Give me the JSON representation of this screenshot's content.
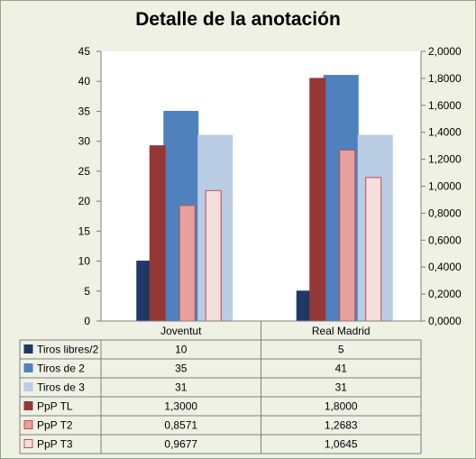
{
  "chart_data": {
    "type": "bar",
    "title": "Detalle de la anotación",
    "categories": [
      "Joventut",
      "Real Madrid"
    ],
    "ylim": [
      0,
      45
    ],
    "y_ticks": [
      "0",
      "5",
      "10",
      "15",
      "20",
      "25",
      "30",
      "35",
      "40",
      "45"
    ],
    "y2lim": [
      0,
      2
    ],
    "y2_ticks": [
      "0,0000",
      "0,2000",
      "0,4000",
      "0,6000",
      "0,8000",
      "1,0000",
      "1,2000",
      "1,4000",
      "1,6000",
      "1,8000",
      "2,0000"
    ],
    "grid": false,
    "legend": "data-table",
    "series": [
      {
        "name": "Tiros libres/2",
        "axis": "left",
        "values": [
          10,
          5
        ],
        "labels": [
          "10",
          "5"
        ],
        "color": "#1f3864",
        "fill": "#1f3864"
      },
      {
        "name": "Tiros de 2",
        "axis": "left",
        "values": [
          35,
          41
        ],
        "labels": [
          "35",
          "41"
        ],
        "color": "#4f81bd",
        "fill": "#4f81bd"
      },
      {
        "name": "Tiros de 3",
        "axis": "left",
        "values": [
          31,
          31
        ],
        "labels": [
          "31",
          "31"
        ],
        "color": "#b9cde5",
        "fill": "#b9cde5"
      },
      {
        "name": "PpP TL",
        "axis": "right",
        "values": [
          1.3,
          1.8
        ],
        "labels": [
          "1,3000",
          "1,8000"
        ],
        "color": "#953735",
        "fill": "#953735"
      },
      {
        "name": "PpP T2",
        "axis": "right",
        "values": [
          0.8571,
          1.2683
        ],
        "labels": [
          "0,8571",
          "1,2683"
        ],
        "color": "#c0504d",
        "fill": "#e6a09e"
      },
      {
        "name": "PpP T3",
        "axis": "right",
        "values": [
          0.9677,
          1.0645
        ],
        "labels": [
          "0,9677",
          "1,0645"
        ],
        "color": "#c0504d",
        "fill": "#f6dedd"
      }
    ]
  }
}
